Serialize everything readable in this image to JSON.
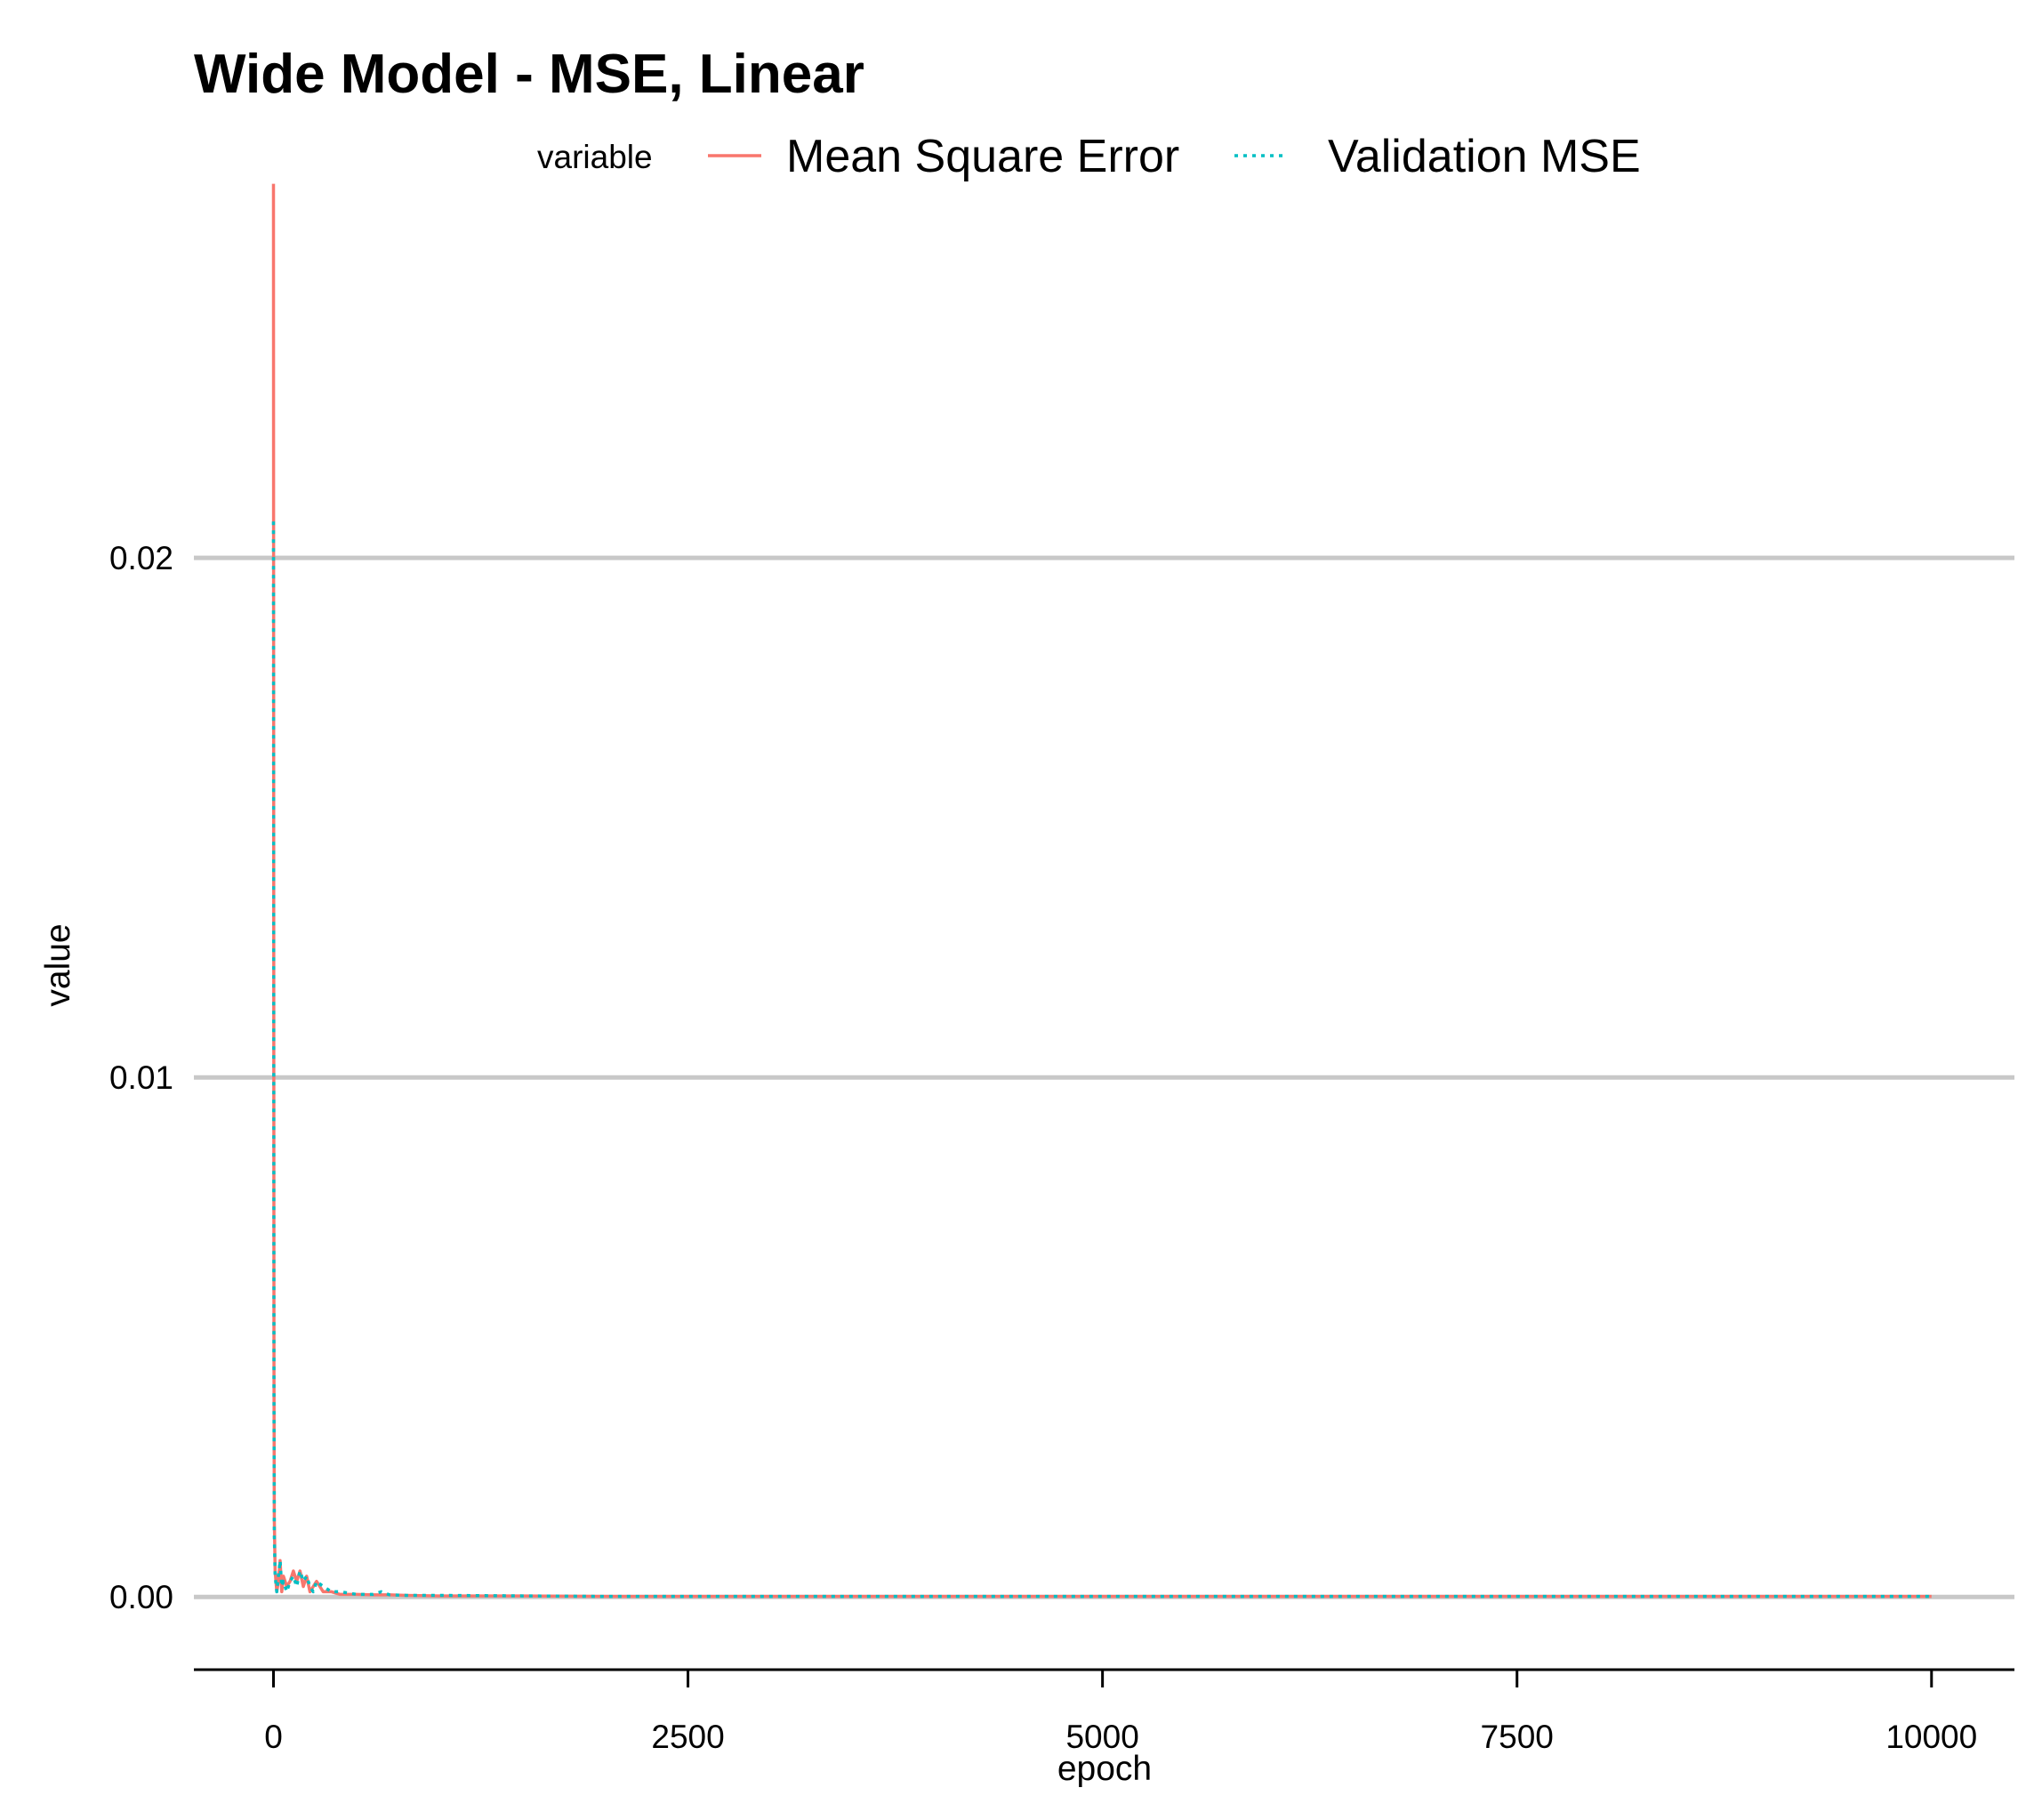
{
  "chart_data": {
    "type": "line",
    "title": "Wide Model - MSE, Linear",
    "xlabel": "epoch",
    "ylabel": "value",
    "xlim": [
      -480,
      10500
    ],
    "ylim": [
      -0.0014,
      0.0274
    ],
    "grid": "horizontal",
    "legend": {
      "title": "variable",
      "placement": "top"
    },
    "x_ticks": [
      {
        "value": 0,
        "label": "0"
      },
      {
        "value": 2500,
        "label": "2500"
      },
      {
        "value": 5000,
        "label": "5000"
      },
      {
        "value": 7500,
        "label": "7500"
      },
      {
        "value": 10000,
        "label": "10000"
      }
    ],
    "y_ticks": [
      {
        "value": 0.0,
        "label": "0.00"
      },
      {
        "value": 0.01,
        "label": "0.01"
      },
      {
        "value": 0.02,
        "label": "0.02"
      }
    ],
    "series": [
      {
        "name": "Mean Square Error",
        "color": "#F8766D",
        "dash": "solid",
        "x": [
          0,
          1,
          2,
          3,
          5,
          10,
          20,
          30,
          40,
          50,
          60,
          80,
          100,
          120,
          140,
          160,
          180,
          200,
          220,
          240,
          260,
          300,
          350,
          400,
          500,
          600,
          700,
          800,
          1000,
          1500,
          2000,
          3000,
          4000,
          5000,
          6000,
          7000,
          8000,
          9000,
          10000
        ],
        "values": [
          0.0272,
          0.018,
          0.0105,
          0.0045,
          0.0015,
          0.0005,
          0.0001,
          0.0003,
          0.0007,
          0.0001,
          0.0004,
          0.0002,
          0.0003,
          0.0005,
          0.0003,
          0.0005,
          0.0002,
          0.0004,
          0.0001,
          0.0002,
          0.0003,
          0.0001,
          0.0001,
          5e-05,
          5e-05,
          4e-05,
          4e-05,
          3e-05,
          2e-05,
          2e-05,
          1e-05,
          1e-05,
          1e-05,
          1e-05,
          1e-05,
          1e-05,
          1e-05,
          1e-05,
          1e-05
        ]
      },
      {
        "name": "Validation MSE",
        "color": "#00BFC4",
        "dash": "dotted",
        "x": [
          0,
          1,
          2,
          3,
          5,
          10,
          20,
          30,
          40,
          50,
          60,
          80,
          100,
          120,
          140,
          160,
          180,
          200,
          220,
          240,
          260,
          300,
          350,
          400,
          500,
          600,
          650,
          700,
          800,
          1000,
          1500,
          2000,
          3000,
          4000,
          5000,
          6000,
          7000,
          8000,
          9000,
          10000
        ],
        "values": [
          0.0207,
          0.0155,
          0.009,
          0.004,
          0.0012,
          0.0004,
          0.0001,
          0.0004,
          0.0007,
          0.0002,
          0.0003,
          0.0001,
          0.0003,
          0.0004,
          0.0002,
          0.0005,
          0.0003,
          0.0004,
          0.0002,
          0.0001,
          0.0003,
          0.0002,
          0.0001,
          0.0001,
          5e-05,
          5e-05,
          0.0001,
          4e-05,
          3e-05,
          3e-05,
          2e-05,
          1e-05,
          1e-05,
          1e-05,
          1e-05,
          1e-05,
          1e-05,
          1e-05,
          1e-05,
          1e-05
        ]
      }
    ]
  }
}
